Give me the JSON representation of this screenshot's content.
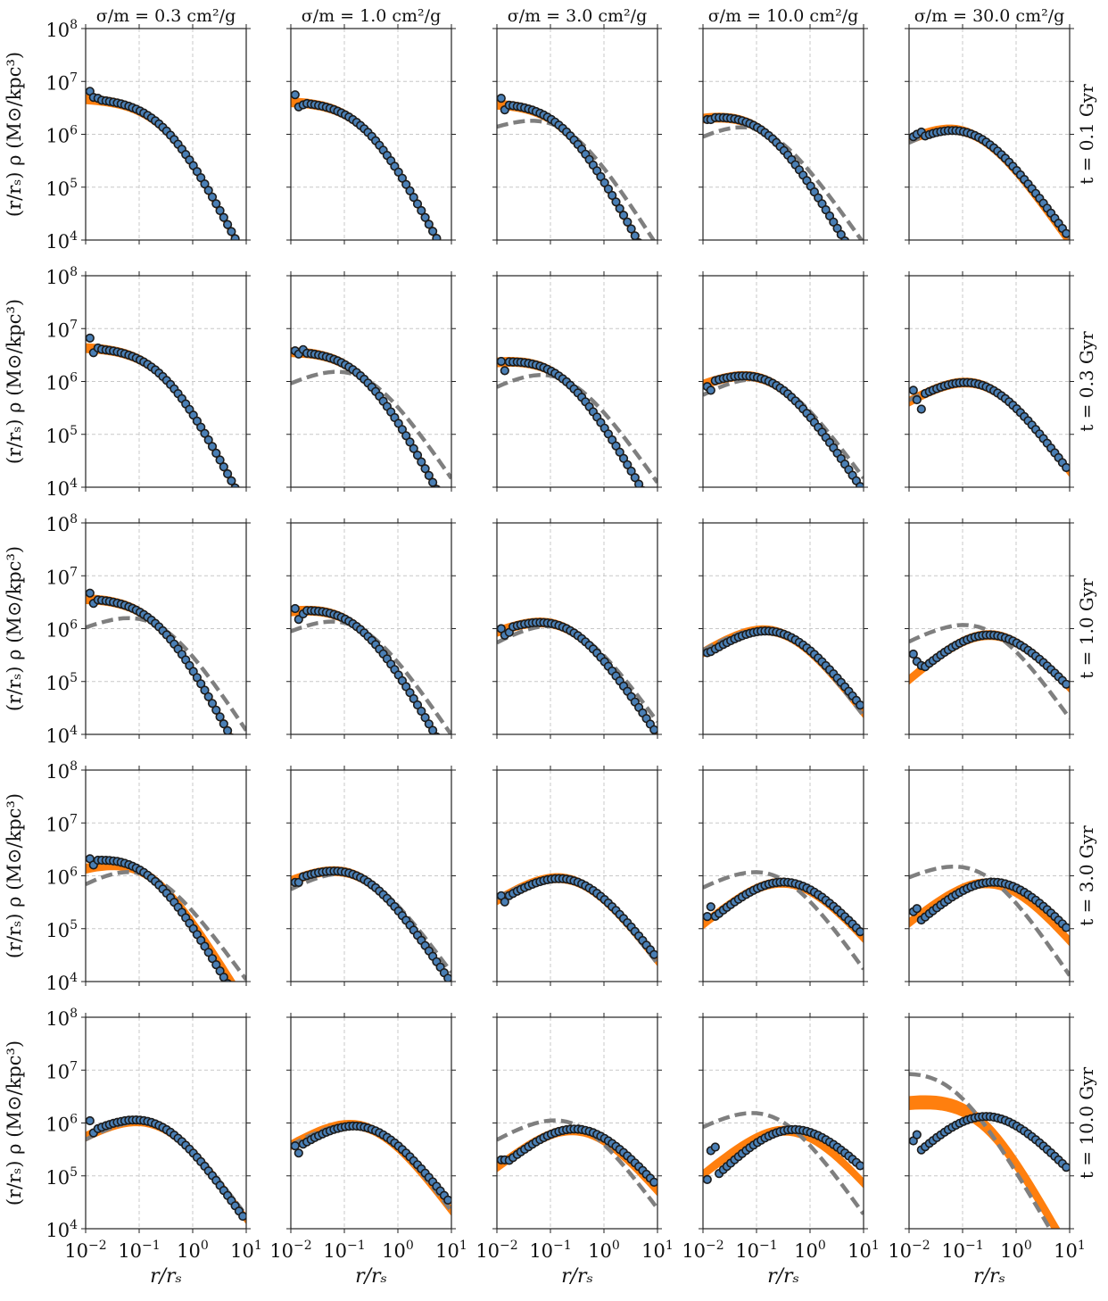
{
  "figure": {
    "col_titles": [
      "σ/m = 0.3 cm²/g",
      "σ/m = 1.0 cm²/g",
      "σ/m = 3.0 cm²/g",
      "σ/m = 10.0 cm²/g",
      "σ/m = 30.0 cm²/g"
    ],
    "row_labels": [
      "t = 0.1 Gyr",
      "t = 0.3 Gyr",
      "t = 1.0 Gyr",
      "t = 3.0 Gyr",
      "t = 10.0 Gyr"
    ],
    "ylabel": "(r/rₛ) ρ (M⊙/kpc³)",
    "xlabel": "r/rₛ",
    "x_ticks": [
      {
        "base": "10",
        "exp": "−2"
      },
      {
        "base": "10",
        "exp": "−1"
      },
      {
        "base": "10",
        "exp": "0"
      },
      {
        "base": "10",
        "exp": "1"
      }
    ],
    "y_ticks": [
      {
        "base": "10",
        "exp": "4"
      },
      {
        "base": "10",
        "exp": "5"
      },
      {
        "base": "10",
        "exp": "6"
      },
      {
        "base": "10",
        "exp": "7"
      },
      {
        "base": "10",
        "exp": "8"
      }
    ],
    "colors": {
      "points_fill": "#4a7fb5",
      "points_edge": "#1c1c1c",
      "band": "#ff7f0e",
      "dashed": "#7f7f7f",
      "grid": "#c8c8c8",
      "axes": "#222222"
    }
  },
  "chart_data": {
    "type": "line",
    "layout": "5x5 grid of subplots (rows = time, columns = cross-section)",
    "x_scale": "log",
    "y_scale": "log",
    "xlim": [
      0.01,
      10
    ],
    "ylim": [
      10000,
      100000000
    ],
    "grid": true,
    "series_styles": {
      "points": "blue circles with dark edges",
      "band": "orange thick band",
      "dashed": "grey dashed line"
    },
    "point_x": [
      0.012,
      0.014,
      0.017,
      0.02,
      0.024,
      0.028,
      0.033,
      0.039,
      0.046,
      0.054,
      0.064,
      0.075,
      0.088,
      0.104,
      0.122,
      0.144,
      0.17,
      0.2,
      0.235,
      0.277,
      0.326,
      0.384,
      0.452,
      0.533,
      0.628,
      0.74,
      0.871,
      1.026,
      1.209,
      1.424,
      1.677,
      1.976,
      2.328,
      2.742,
      3.23,
      3.805,
      4.482,
      5.28,
      6.22,
      7.327,
      8.63
    ],
    "curve_x": [
      0.01,
      0.013,
      0.016,
      0.02,
      0.025,
      0.032,
      0.04,
      0.05,
      0.063,
      0.079,
      0.1,
      0.126,
      0.158,
      0.2,
      0.251,
      0.316,
      0.398,
      0.501,
      0.631,
      0.794,
      1.0,
      1.259,
      1.585,
      1.995,
      2.512,
      3.162,
      3.981,
      5.012,
      6.31,
      7.943,
      10.0
    ],
    "panels": [
      {
        "row": 0,
        "col": 0,
        "points_core": 5000000.0,
        "points_rc": 0.3,
        "points_n": 0.0,
        "first_points": [
          6500000.0,
          5000000.0,
          4800000.0
        ],
        "band_core": 4900000.0,
        "band_rc": 0.3,
        "band_n": 0.0,
        "band_width_dex": 0.08,
        "dashed": null
      },
      {
        "row": 0,
        "col": 1,
        "points_core": 4800000.0,
        "points_rc": 0.25,
        "points_n": 0.03,
        "first_points": [
          5600000.0,
          3300000.0,
          3600000.0
        ],
        "band_core": 4800000.0,
        "band_rc": 0.25,
        "band_n": 0.03,
        "band_width_dex": 0.08,
        "dashed": null
      },
      {
        "row": 0,
        "col": 2,
        "points_core": 4900000.0,
        "points_rc": 0.18,
        "points_n": 0.06,
        "first_points": [
          4800000.0,
          2900000.0
        ],
        "band_core": 4800000.0,
        "band_rc": 0.18,
        "band_n": 0.06,
        "band_width_dex": 0.08,
        "dashed": {
          "core": 4900000.0,
          "rc": 0.18,
          "n": 0.4
        }
      },
      {
        "row": 0,
        "col": 3,
        "points_core": 4400000.0,
        "points_rc": 0.14,
        "points_n": 0.25,
        "first_points": [
          1900000.0,
          1900000.0
        ],
        "band_core": 4400000.0,
        "band_rc": 0.14,
        "band_n": 0.25,
        "band_width_dex": 0.08,
        "dashed": {
          "core": 4400000.0,
          "rc": 0.14,
          "n": 0.55
        }
      },
      {
        "row": 0,
        "col": 4,
        "points_core": 4000000.0,
        "points_rc": 0.15,
        "points_n": 0.6,
        "first_points": [
          900000.0,
          1000000.0,
          1100000.0
        ],
        "band_core": 4000000.0,
        "band_rc": 0.15,
        "band_n": 0.55,
        "band_width_dex": 0.08,
        "dashed": {
          "core": 4000000.0,
          "rc": 0.15,
          "n": 0.6
        }
      },
      {
        "row": 1,
        "col": 0,
        "points_core": 4900000.0,
        "points_rc": 0.28,
        "points_n": 0.02,
        "first_points": [
          6600000.0,
          3500000.0,
          4300000.0
        ],
        "band_core": 4900000.0,
        "band_rc": 0.28,
        "band_n": 0.02,
        "band_width_dex": 0.08,
        "dashed": null
      },
      {
        "row": 1,
        "col": 1,
        "points_core": 4700000.0,
        "points_rc": 0.22,
        "points_n": 0.06,
        "first_points": [
          3800000.0,
          3300000.0,
          4000000.0
        ],
        "band_core": 4700000.0,
        "band_rc": 0.22,
        "band_n": 0.06,
        "band_width_dex": 0.08,
        "dashed": {
          "core": 4700000.0,
          "rc": 0.22,
          "n": 0.5
        }
      },
      {
        "row": 1,
        "col": 2,
        "points_core": 4300000.0,
        "points_rc": 0.18,
        "points_n": 0.18,
        "first_points": [
          2400000.0,
          1600000.0
        ],
        "band_core": 4300000.0,
        "band_rc": 0.18,
        "band_n": 0.18,
        "band_width_dex": 0.08,
        "dashed": {
          "core": 4300000.0,
          "rc": 0.18,
          "n": 0.55
        }
      },
      {
        "row": 1,
        "col": 3,
        "points_core": 3700000.0,
        "points_rc": 0.2,
        "points_n": 0.45,
        "first_points": [
          800000.0,
          680000.0
        ],
        "band_core": 3700000.0,
        "band_rc": 0.2,
        "band_n": 0.45,
        "band_width_dex": 0.08,
        "dashed": {
          "core": 3700000.0,
          "rc": 0.2,
          "n": 0.6
        }
      },
      {
        "row": 1,
        "col": 4,
        "points_core": 3300000.0,
        "points_rc": 0.25,
        "points_n": 0.62,
        "first_points": [
          680000.0,
          450000.0,
          300000.0
        ],
        "band_core": 3300000.0,
        "band_rc": 0.25,
        "band_n": 0.62,
        "band_width_dex": 0.08,
        "dashed": {
          "core": 3300000.0,
          "rc": 0.25,
          "n": 0.6
        }
      },
      {
        "row": 2,
        "col": 0,
        "points_core": 4600000.0,
        "points_rc": 0.22,
        "points_n": 0.05,
        "first_points": [
          4700000.0,
          3000000.0,
          3500000.0
        ],
        "band_core": 4600000.0,
        "band_rc": 0.22,
        "band_n": 0.05,
        "band_width_dex": 0.08,
        "dashed": {
          "core": 4600000.0,
          "rc": 0.22,
          "n": 0.45
        }
      },
      {
        "row": 2,
        "col": 1,
        "points_core": 4200000.0,
        "points_rc": 0.18,
        "points_n": 0.2,
        "first_points": [
          2400000.0,
          1500000.0,
          1900000.0
        ],
        "band_core": 4200000.0,
        "band_rc": 0.18,
        "band_n": 0.2,
        "band_width_dex": 0.08,
        "dashed": {
          "core": 4200000.0,
          "rc": 0.18,
          "n": 0.5
        }
      },
      {
        "row": 2,
        "col": 2,
        "points_core": 3800000.0,
        "points_rc": 0.22,
        "points_n": 0.45,
        "first_points": [
          1000000.0,
          750000.0,
          850000.0
        ],
        "band_core": 3800000.0,
        "band_rc": 0.22,
        "band_n": 0.45,
        "band_width_dex": 0.08,
        "dashed": {
          "core": 3800000.0,
          "rc": 0.22,
          "n": 0.6
        }
      },
      {
        "row": 2,
        "col": 3,
        "points_core": 3300000.0,
        "points_rc": 0.28,
        "points_n": 0.7,
        "first_points": [
          350000.0,
          370000.0
        ],
        "band_core": 3300000.0,
        "band_rc": 0.28,
        "band_n": 0.65,
        "band_width_dex": 0.08,
        "dashed": {
          "core": 3300000.0,
          "rc": 0.28,
          "n": 0.62
        }
      },
      {
        "row": 2,
        "col": 4,
        "points_core": 3000000.0,
        "points_rc": 0.38,
        "points_n": 0.9,
        "first_points": [
          330000.0,
          240000.0,
          200000.0
        ],
        "band_core": 3000000.0,
        "band_rc": 0.38,
        "band_n": 0.9,
        "band_width_dex": 0.08,
        "dashed": {
          "core": 3800000.0,
          "rc": 0.28,
          "n": 0.55
        }
      },
      {
        "row": 3,
        "col": 0,
        "points_core": 4200000.0,
        "points_rc": 0.14,
        "points_n": 0.25,
        "first_points": [
          2100000.0,
          1600000.0
        ],
        "band_core": 4000000.0,
        "band_rc": 0.15,
        "band_n": 0.35,
        "band_width_dex": 0.08,
        "dashed": {
          "core": 4000000.0,
          "rc": 0.15,
          "n": 0.6
        }
      },
      {
        "row": 3,
        "col": 1,
        "points_core": 3700000.0,
        "points_rc": 0.2,
        "points_n": 0.48,
        "first_points": [
          750000.0,
          750000.0
        ],
        "band_core": 3700000.0,
        "band_rc": 0.2,
        "band_n": 0.48,
        "band_width_dex": 0.08,
        "dashed": {
          "core": 3700000.0,
          "rc": 0.2,
          "n": 0.6
        }
      },
      {
        "row": 3,
        "col": 2,
        "points_core": 3200000.0,
        "points_rc": 0.28,
        "points_n": 0.68,
        "first_points": [
          420000.0,
          320000.0
        ],
        "band_core": 3200000.0,
        "band_rc": 0.28,
        "band_n": 0.65,
        "band_width_dex": 0.08,
        "dashed": {
          "core": 3200000.0,
          "rc": 0.28,
          "n": 0.62
        }
      },
      {
        "row": 3,
        "col": 3,
        "points_core": 3000000.0,
        "points_rc": 0.4,
        "points_n": 0.88,
        "first_points": [
          170000.0,
          260000.0
        ],
        "band_core": 2900000.0,
        "band_rc": 0.4,
        "band_n": 0.85,
        "band_width_dex": 0.08,
        "dashed": {
          "core": 3800000.0,
          "rc": 0.25,
          "n": 0.55
        }
      },
      {
        "row": 3,
        "col": 4,
        "points_core": 3000000.0,
        "points_rc": 0.45,
        "points_n": 0.9,
        "first_points": [
          210000.0,
          240000.0
        ],
        "band_core": 2800000.0,
        "band_rc": 0.4,
        "band_n": 0.82,
        "band_width_dex": 0.08,
        "dashed": {
          "core": 4500000.0,
          "rc": 0.22,
          "n": 0.48
        }
      },
      {
        "row": 4,
        "col": 0,
        "points_core": 3700000.0,
        "points_rc": 0.22,
        "points_n": 0.55,
        "first_points": [
          1100000.0,
          650000.0
        ],
        "band_core": 3600000.0,
        "band_rc": 0.22,
        "band_n": 0.58,
        "band_width_dex": 0.08,
        "dashed": {
          "core": 3600000.0,
          "rc": 0.22,
          "n": 0.62
        }
      },
      {
        "row": 4,
        "col": 1,
        "points_core": 3200000.0,
        "points_rc": 0.28,
        "points_n": 0.7,
        "first_points": [
          370000.0,
          270000.0
        ],
        "band_core": 3200000.0,
        "band_rc": 0.28,
        "band_n": 0.62,
        "band_width_dex": 0.08,
        "dashed": {
          "core": 3200000.0,
          "rc": 0.28,
          "n": 0.62
        }
      },
      {
        "row": 4,
        "col": 2,
        "points_core": 3000000.0,
        "points_rc": 0.38,
        "points_n": 0.85,
        "first_points": [
          200000.0,
          200000.0
        ],
        "band_core": 2800000.0,
        "band_rc": 0.38,
        "band_n": 0.8,
        "band_width_dex": 0.08,
        "dashed": {
          "core": 3800000.0,
          "rc": 0.28,
          "n": 0.6
        }
      },
      {
        "row": 4,
        "col": 3,
        "points_core": 3000000.0,
        "points_rc": 0.5,
        "points_n": 1.0,
        "first_points": [
          85000.0,
          300000.0,
          350000.0
        ],
        "band_core": 2800000.0,
        "band_rc": 0.45,
        "band_n": 0.85,
        "band_width_dex": 0.08,
        "dashed": {
          "core": 5000000.0,
          "rc": 0.22,
          "n": 0.55
        }
      },
      {
        "row": 4,
        "col": 4,
        "points_core": 5300000.0,
        "points_rc": 0.3,
        "points_n": 0.95,
        "first_points": [
          460000.0,
          600000.0
        ],
        "band_core": 4500000.0,
        "band_rc": 0.2,
        "band_n": 0.18,
        "band_width_dex": 0.12,
        "dashed": {
          "core": 18000000.0,
          "rc": 0.06,
          "n": 0.25
        }
      }
    ]
  }
}
